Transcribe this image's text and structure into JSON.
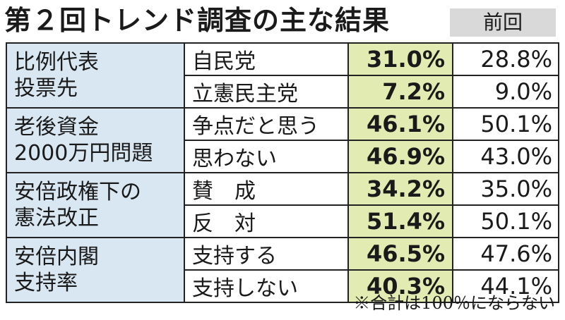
{
  "title": "第２回トレンド調査の主な結果",
  "previous_header": "前回",
  "groups": [
    {
      "category_lines": [
        "比例代表",
        "投票先"
      ],
      "rows": [
        {
          "item": "自民党",
          "current": "31.0%",
          "previous": "28.8%"
        },
        {
          "item": "立憲民主党",
          "current": "7.2%",
          "previous": "9.0%"
        }
      ]
    },
    {
      "category_lines": [
        "老後資金",
        "2000万円問題"
      ],
      "rows": [
        {
          "item": "争点だと思う",
          "current": "46.1%",
          "previous": "50.1%"
        },
        {
          "item": "思わない",
          "current": "46.9%",
          "previous": "43.0%"
        }
      ]
    },
    {
      "category_lines": [
        "安倍政権下の",
        "憲法改正"
      ],
      "rows": [
        {
          "item": "賛　成",
          "current": "34.2%",
          "previous": "35.0%"
        },
        {
          "item": "反　対",
          "current": "51.4%",
          "previous": "50.1%"
        }
      ]
    },
    {
      "category_lines": [
        "安倍内閣",
        "支持率"
      ],
      "rows": [
        {
          "item": "支持する",
          "current": "46.5%",
          "previous": "47.6%"
        },
        {
          "item": "支持しない",
          "current": "40.3%",
          "previous": "44.1%"
        }
      ]
    }
  ],
  "note": "※合計は100％にならない",
  "colors": {
    "category_bg": "#d9e7f2",
    "current_bg": "#e2ebb2",
    "previous_header_bg": "#d9d9d9"
  }
}
